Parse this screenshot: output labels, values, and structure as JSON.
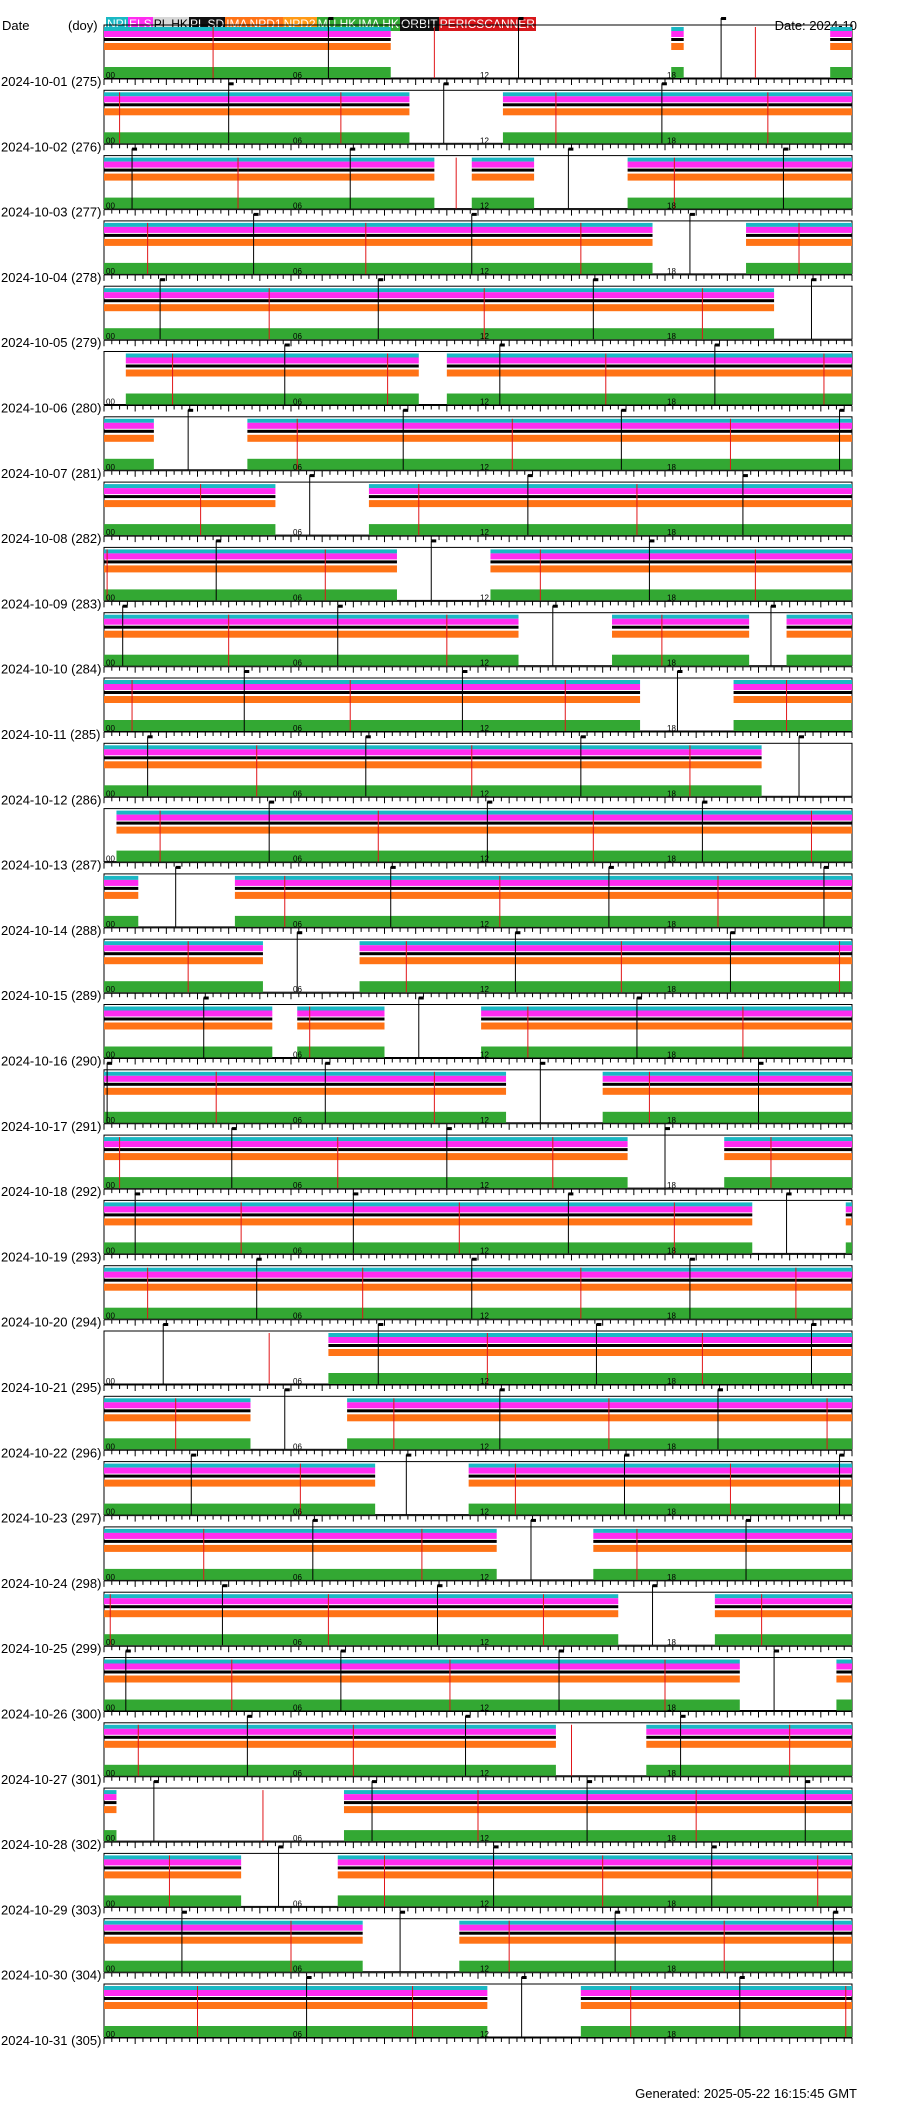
{
  "header": {
    "date_label": "Date",
    "doy_label": "(doy)",
    "month_label": "Date: 2024-10"
  },
  "legend": [
    {
      "label": "NPI",
      "bg": "#1ab8c4",
      "fg": "#ffffff"
    },
    {
      "label": "ELS",
      "bg": "#ff2cf0",
      "fg": "#ffffff"
    },
    {
      "label": "PL HK",
      "bg": "#d8d8d8",
      "fg": "#000000"
    },
    {
      "label": "PL SD",
      "bg": "#111111",
      "fg": "#ffffff"
    },
    {
      "label": "IMA",
      "bg": "#ff7316",
      "fg": "#ffffff"
    },
    {
      "label": "NPD1",
      "bg": "#ff7316",
      "fg": "#ffffff"
    },
    {
      "label": "NPD2",
      "bg": "#ff9a16",
      "fg": "#ffffff"
    },
    {
      "label": "MU HK",
      "bg": "#33a833",
      "fg": "#ffffff"
    },
    {
      "label": "IMA HK",
      "bg": "#33a833",
      "fg": "#ffffff"
    },
    {
      "label": "ORBIT",
      "bg": "#111111",
      "fg": "#ffffff"
    },
    {
      "label": "PERICSCANNER",
      "bg": "#d8161a",
      "fg": "#ffffff"
    }
  ],
  "colors": {
    "npi": "#1ab8c4",
    "els": "#ff2cf0",
    "plsd": "#000000",
    "ima": "#ff7316",
    "mu": "#33a833",
    "orbit": "#000000",
    "peric": "#e0161a",
    "border": "#000000"
  },
  "chart_data": {
    "type": "timeline",
    "x_unit": "hour of day (UT)",
    "x_range": [
      0,
      24
    ],
    "hour_tick_labels": [
      "00",
      "06",
      "12",
      "18"
    ],
    "days": [
      {
        "date": "2024-10-01",
        "doy": 275,
        "label": "2024-10-01 (275)",
        "gaps": [
          [
            9.2,
            18.2
          ],
          [
            18.6,
            23.3
          ]
        ],
        "orbit_marks": [
          7.2,
          13.3,
          19.8
        ],
        "peric": [
          3.5,
          10.6,
          20.9
        ]
      },
      {
        "date": "2024-10-02",
        "doy": 276,
        "label": "2024-10-02 (276)",
        "gaps": [
          [
            9.8,
            12.8
          ]
        ],
        "orbit_marks": [
          4.0,
          10.9,
          17.9
        ],
        "peric": [
          0.5,
          7.6,
          14.5,
          21.3
        ]
      },
      {
        "date": "2024-10-03",
        "doy": 277,
        "label": "2024-10-03 (277)",
        "gaps": [
          [
            10.6,
            11.8
          ],
          [
            13.8,
            16.8
          ]
        ],
        "orbit_marks": [
          0.9,
          7.9,
          14.9,
          21.8
        ],
        "peric": [
          4.3,
          11.3,
          18.3
        ]
      },
      {
        "date": "2024-10-04",
        "doy": 278,
        "label": "2024-10-04 (278)",
        "gaps": [
          [
            17.6,
            20.6
          ]
        ],
        "orbit_marks": [
          4.8,
          11.8,
          18.8
        ],
        "peric": [
          1.4,
          8.4,
          15.3,
          22.3
        ]
      },
      {
        "date": "2024-10-05",
        "doy": 279,
        "label": "2024-10-05 (279)",
        "gaps": [
          [
            21.5,
            24.0
          ]
        ],
        "orbit_marks": [
          1.8,
          8.8,
          15.7,
          22.7
        ],
        "peric": [
          5.3,
          12.2,
          19.2
        ]
      },
      {
        "date": "2024-10-06",
        "doy": 280,
        "label": "2024-10-06 (280)",
        "gaps": [
          [
            0.0,
            0.7
          ],
          [
            10.1,
            11.0
          ]
        ],
        "orbit_marks": [
          5.8,
          12.7,
          19.6
        ],
        "peric": [
          2.2,
          9.1,
          16.1,
          23.1
        ]
      },
      {
        "date": "2024-10-07",
        "doy": 281,
        "label": "2024-10-07 (281)",
        "gaps": [
          [
            1.6,
            4.6
          ]
        ],
        "orbit_marks": [
          2.7,
          9.6,
          16.6,
          23.6
        ],
        "peric": [
          6.2,
          13.1,
          20.1
        ]
      },
      {
        "date": "2024-10-08",
        "doy": 282,
        "label": "2024-10-08 (282)",
        "gaps": [
          [
            5.5,
            8.5
          ]
        ],
        "orbit_marks": [
          6.6,
          13.6,
          20.5
        ],
        "peric": [
          3.1,
          10.1,
          17.1
        ]
      },
      {
        "date": "2024-10-09",
        "doy": 283,
        "label": "2024-10-09 (283)",
        "gaps": [
          [
            9.4,
            12.4
          ]
        ],
        "orbit_marks": [
          3.6,
          10.5,
          17.5
        ],
        "peric": [
          0.1,
          7.1,
          14.0,
          20.9
        ]
      },
      {
        "date": "2024-10-10",
        "doy": 284,
        "label": "2024-10-10 (284)",
        "gaps": [
          [
            13.3,
            16.3
          ],
          [
            20.7,
            21.9
          ]
        ],
        "orbit_marks": [
          0.6,
          7.5,
          14.4,
          21.4
        ],
        "peric": [
          4.0,
          11.0,
          17.9
        ]
      },
      {
        "date": "2024-10-11",
        "doy": 285,
        "label": "2024-10-11 (285)",
        "gaps": [
          [
            17.2,
            20.2
          ]
        ],
        "orbit_marks": [
          4.5,
          11.5,
          18.4
        ],
        "peric": [
          0.9,
          7.9,
          14.8,
          21.9
        ]
      },
      {
        "date": "2024-10-12",
        "doy": 286,
        "label": "2024-10-12 (286)",
        "gaps": [
          [
            21.1,
            24.0
          ]
        ],
        "orbit_marks": [
          1.4,
          8.4,
          15.3,
          22.3
        ],
        "peric": [
          4.9,
          11.8,
          18.8
        ]
      },
      {
        "date": "2024-10-13",
        "doy": 287,
        "label": "2024-10-13 (287)",
        "gaps": [
          [
            0.0,
            0.4
          ]
        ],
        "orbit_marks": [
          5.3,
          12.3,
          19.2
        ],
        "peric": [
          1.8,
          8.8,
          15.7,
          22.7
        ]
      },
      {
        "date": "2024-10-14",
        "doy": 288,
        "label": "2024-10-14 (288)",
        "gaps": [
          [
            1.1,
            4.2
          ]
        ],
        "orbit_marks": [
          2.3,
          9.2,
          16.2,
          23.1
        ],
        "peric": [
          5.8,
          12.7,
          19.7
        ]
      },
      {
        "date": "2024-10-15",
        "doy": 289,
        "label": "2024-10-15 (289)",
        "gaps": [
          [
            5.1,
            8.2
          ]
        ],
        "orbit_marks": [
          6.2,
          13.2,
          20.1
        ],
        "peric": [
          2.7,
          9.7,
          16.6,
          23.6
        ]
      },
      {
        "date": "2024-10-16",
        "doy": 290,
        "label": "2024-10-16 (290)",
        "gaps": [
          [
            5.4,
            6.2
          ],
          [
            9.0,
            12.1
          ]
        ],
        "orbit_marks": [
          3.2,
          10.1,
          17.1
        ],
        "peric": [
          6.6,
          13.6,
          20.5
        ]
      },
      {
        "date": "2024-10-17",
        "doy": 291,
        "label": "2024-10-17 (291)",
        "gaps": [
          [
            12.9,
            16.0
          ]
        ],
        "orbit_marks": [
          0.1,
          7.1,
          14.0,
          21.0
        ],
        "peric": [
          3.6,
          10.6,
          17.5
        ]
      },
      {
        "date": "2024-10-18",
        "doy": 292,
        "label": "2024-10-18 (292)",
        "gaps": [
          [
            16.8,
            19.9
          ]
        ],
        "orbit_marks": [
          4.1,
          11.0,
          18.0
        ],
        "peric": [
          0.5,
          7.5,
          14.4,
          21.4
        ]
      },
      {
        "date": "2024-10-19",
        "doy": 293,
        "label": "2024-10-19 (293)",
        "gaps": [
          [
            20.8,
            23.8
          ]
        ],
        "orbit_marks": [
          1.0,
          8.0,
          14.9,
          21.9
        ],
        "peric": [
          4.4,
          11.4,
          18.3
        ]
      },
      {
        "date": "2024-10-20",
        "doy": 294,
        "label": "2024-10-20 (294)",
        "gaps": [],
        "orbit_marks": [
          4.9,
          11.8,
          18.8
        ],
        "peric": [
          1.4,
          8.3,
          15.3,
          22.2
        ]
      },
      {
        "date": "2024-10-21",
        "doy": 295,
        "label": "2024-10-21 (295)",
        "gaps": [
          [
            0.0,
            7.2
          ]
        ],
        "orbit_marks": [
          1.9,
          8.8,
          15.8,
          22.7
        ],
        "peric": [
          5.3,
          12.3,
          19.2
        ]
      },
      {
        "date": "2024-10-22",
        "doy": 296,
        "label": "2024-10-22 (296)",
        "gaps": [
          [
            4.7,
            7.8
          ]
        ],
        "orbit_marks": [
          5.8,
          12.7,
          19.7
        ],
        "peric": [
          2.3,
          9.3,
          16.2,
          23.2
        ]
      },
      {
        "date": "2024-10-23",
        "doy": 297,
        "label": "2024-10-23 (297)",
        "gaps": [
          [
            8.7,
            11.7
          ]
        ],
        "orbit_marks": [
          2.8,
          9.7,
          16.7,
          23.6
        ],
        "peric": [
          6.3,
          13.2,
          20.1
        ]
      },
      {
        "date": "2024-10-24",
        "doy": 298,
        "label": "2024-10-24 (298)",
        "gaps": [
          [
            12.6,
            15.7
          ]
        ],
        "orbit_marks": [
          6.7,
          13.7,
          20.6
        ],
        "peric": [
          3.2,
          10.2,
          17.1
        ]
      },
      {
        "date": "2024-10-25",
        "doy": 299,
        "label": "2024-10-25 (299)",
        "gaps": [
          [
            16.5,
            19.6
          ]
        ],
        "orbit_marks": [
          3.8,
          10.7,
          17.6
        ],
        "peric": [
          0.2,
          7.2,
          14.1,
          21.1
        ]
      },
      {
        "date": "2024-10-26",
        "doy": 300,
        "label": "2024-10-26 (300)",
        "gaps": [
          [
            20.4,
            23.5
          ]
        ],
        "orbit_marks": [
          0.7,
          7.6,
          14.6,
          21.5
        ],
        "peric": [
          4.1,
          11.1,
          18.0
        ]
      },
      {
        "date": "2024-10-27",
        "doy": 301,
        "label": "2024-10-27 (301)",
        "gaps": [
          [
            14.5,
            17.4
          ]
        ],
        "orbit_marks": [
          4.6,
          11.6,
          18.5
        ],
        "peric": [
          1.1,
          8.0,
          15.0,
          22.0
        ]
      },
      {
        "date": "2024-10-28",
        "doy": 302,
        "label": "2024-10-28 (302)",
        "gaps": [
          [
            0.4,
            7.7
          ]
        ],
        "orbit_marks": [
          1.6,
          8.6,
          15.5,
          22.5
        ],
        "peric": [
          5.1,
          12.0,
          19.0
        ]
      },
      {
        "date": "2024-10-29",
        "doy": 303,
        "label": "2024-10-29 (303)",
        "gaps": [
          [
            4.4,
            7.5
          ]
        ],
        "orbit_marks": [
          5.6,
          12.5,
          19.5
        ],
        "peric": [
          2.1,
          9.0,
          16.0,
          22.9
        ]
      },
      {
        "date": "2024-10-30",
        "doy": 304,
        "label": "2024-10-30 (304)",
        "gaps": [
          [
            8.3,
            11.4
          ]
        ],
        "orbit_marks": [
          2.5,
          9.5,
          16.4,
          23.4
        ],
        "peric": [
          6.0,
          13.0,
          19.9
        ]
      },
      {
        "date": "2024-10-31",
        "doy": 305,
        "label": "2024-10-31 (305)",
        "gaps": [
          [
            12.3,
            15.3
          ]
        ],
        "orbit_marks": [
          6.5,
          13.4,
          20.4
        ],
        "peric": [
          3.0,
          9.9,
          16.9,
          23.8
        ]
      }
    ]
  },
  "footer": {
    "generated": "Generated: 2025-05-22 16:15:45 GMT"
  }
}
